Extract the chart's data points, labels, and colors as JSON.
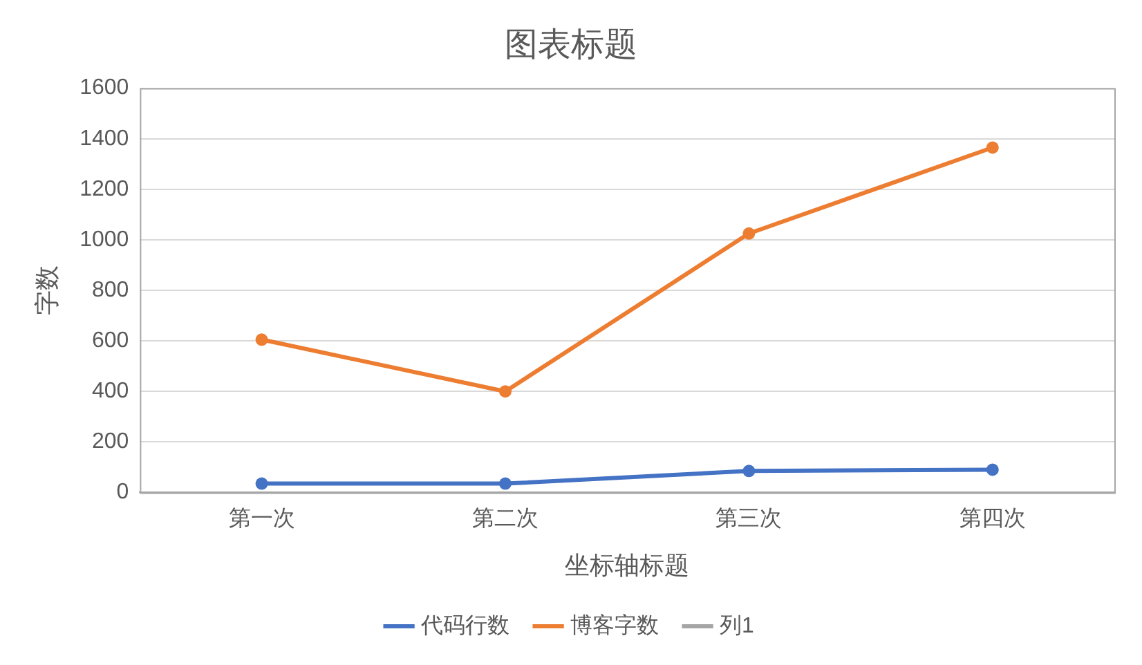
{
  "chart_data": {
    "type": "line",
    "title": "图表标题",
    "xlabel": "坐标轴标题",
    "ylabel": "字数",
    "categories": [
      "第一次",
      "第二次",
      "第三次",
      "第四次"
    ],
    "series": [
      {
        "name": "代码行数",
        "color": "#4472c4",
        "values": [
          35,
          35,
          85,
          90
        ]
      },
      {
        "name": "博客字数",
        "color": "#ed7d31",
        "values": [
          605,
          400,
          1025,
          1365
        ]
      },
      {
        "name": "列1",
        "color": "#a5a5a5",
        "values": [
          null,
          null,
          null,
          null
        ]
      }
    ],
    "ylim": [
      0,
      1600
    ],
    "yticks": [
      0,
      200,
      400,
      600,
      800,
      1000,
      1200,
      1400,
      1600
    ],
    "grid": "y",
    "legend": "bottom",
    "marker": "circle",
    "line_style": "solid"
  }
}
